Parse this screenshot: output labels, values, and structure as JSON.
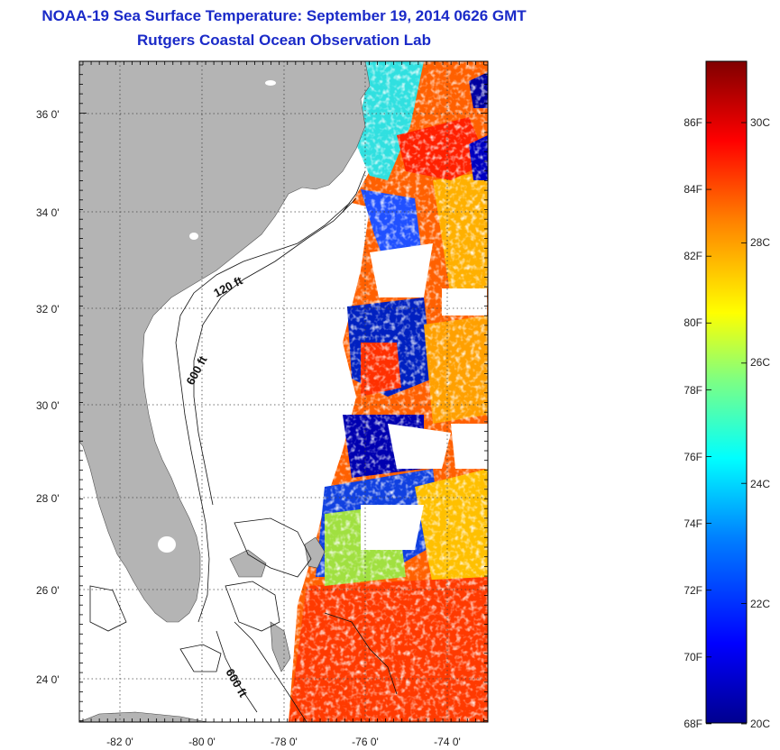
{
  "header": {
    "title": "NOAA-19 Sea Surface Temperature:  September 19, 2014 0626 GMT",
    "subtitle": "Rutgers Coastal Ocean Observation Lab"
  },
  "map": {
    "lat_labels": [
      "36 0'",
      "34 0'",
      "32 0'",
      "30 0'",
      "28 0'",
      "26 0'",
      "24 0'"
    ],
    "lon_labels": [
      "-82 0'",
      "-80 0'",
      "-78 0'",
      "-76 0'",
      "-74 0'"
    ],
    "contour_labels": [
      "120 ft",
      "600 ft",
      "600 ft"
    ],
    "colors": {
      "land": "#b4b4b4",
      "no_data": "#ffffff",
      "grid": "#333333"
    }
  },
  "colorbar": {
    "fahrenheit_labels": [
      "86F",
      "84F",
      "82F",
      "80F",
      "78F",
      "76F",
      "74F",
      "72F",
      "70F",
      "68F"
    ],
    "celsius_labels": [
      "30C",
      "28C",
      "26C",
      "24C",
      "22C",
      "20C"
    ],
    "colormap": [
      "#00008f",
      "#0000ff",
      "#0080ff",
      "#00ffff",
      "#80ff80",
      "#ffff00",
      "#ff8000",
      "#ff0000",
      "#800000"
    ]
  }
}
